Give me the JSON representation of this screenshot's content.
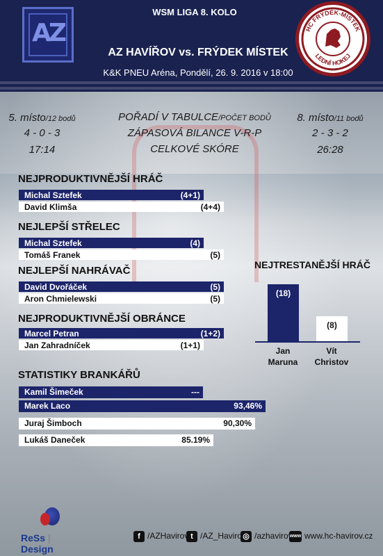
{
  "header": {
    "league": "WSM LIGA 8. KOLO",
    "match": "AZ HAVÍŘOV vs. FRÝDEK MÍSTEK",
    "venue": "K&K PNEU Aréna, Pondělí, 26. 9. 2016 v 18:00",
    "logo_left_text": "AZ",
    "logo_right_text_top": "HC FRÝDEK-MÍSTEK",
    "logo_right_text_bottom": "LEDNÍ HOKEJ"
  },
  "comparison": {
    "home": {
      "place": "5. místo",
      "points": "/12 bodů",
      "record": "4 - 0 - 3",
      "score": "17:14"
    },
    "labels": {
      "table_a": "POŘADÍ V TABULCE",
      "table_b": "/POČET BODŮ",
      "record": "ZÁPASOVÁ BILANCE V-R-P",
      "score": "CELKOVÉ SKÓRE"
    },
    "away": {
      "place": "8. místo",
      "points": "/11 bodů",
      "record": "2 - 3 - 2",
      "score": "26:28"
    }
  },
  "sections": {
    "productive": {
      "title": "NEJPRODUKTIVNĚJŠÍ HRÁČ",
      "rows": [
        {
          "name": "Michal Sztefek",
          "value": "(4+1)"
        },
        {
          "name": "David Klimša",
          "value": "(4+4)"
        }
      ]
    },
    "shooter": {
      "title": "NEJLEPŠÍ STŘELEC",
      "rows": [
        {
          "name": "Michal Sztefek",
          "value": "(4)"
        },
        {
          "name": "Tomáš Franek",
          "value": "(5)"
        }
      ]
    },
    "passer": {
      "title": "NEJLEPŠÍ NAHRÁVAČ",
      "rows": [
        {
          "name": "David Dvořáček",
          "value": "(5)"
        },
        {
          "name": "Aron Chmielewski",
          "value": "(5)"
        }
      ]
    },
    "defender": {
      "title": "NEJPRODUKTIVNĚJŠÍ OBRÁNCE",
      "rows": [
        {
          "name": "Marcel Petran",
          "value": "(1+2)"
        },
        {
          "name": "Jan Zahradníček",
          "value": "(1+1)"
        }
      ]
    },
    "goalies": {
      "title": "STATISTIKY BRANKÁŘŮ",
      "rows": [
        {
          "name": "Kamil Šimeček",
          "value": "---",
          "pct": null
        },
        {
          "name": "Marek Laco",
          "value": "93,46%",
          "pct": 93.46
        },
        {
          "name": "Juraj Šimboch",
          "value": "90,30%",
          "pct": 90.3
        },
        {
          "name": "Lukáš Daneček",
          "value": "85.19%",
          "pct": 85.19
        }
      ]
    }
  },
  "penalty": {
    "title": "NEJTRESTANĚJŠÍ HRÁČ",
    "bars": [
      {
        "label": "(18)",
        "value": 18,
        "name1": "Jan",
        "name2": "Maruna"
      },
      {
        "label": "(8)",
        "value": 8,
        "name1": "Vít",
        "name2": "Christov"
      }
    ]
  },
  "footer": {
    "brand_a": "ReSs",
    "brand_b": "Design",
    "facebook": "/AZHavirov",
    "twitter": "/AZ_Havirov",
    "instagram": "/azhavirov",
    "web": "www.hc-havirov.cz"
  },
  "colors": {
    "navy": "#1c246a",
    "header": "#1a2250",
    "hc_red": "#8e1b22"
  }
}
